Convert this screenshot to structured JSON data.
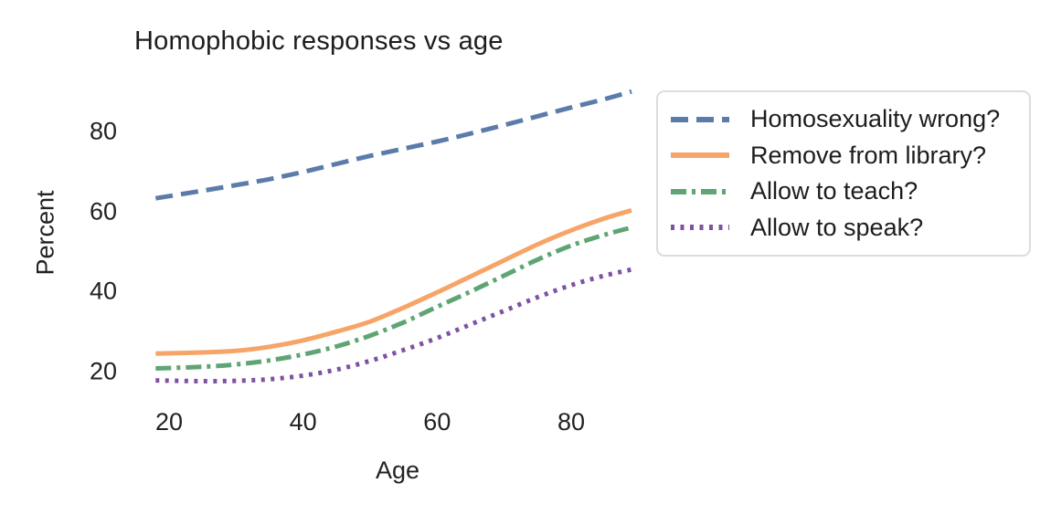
{
  "chart_data": {
    "type": "line",
    "title": "Homophobic responses vs age",
    "xlabel": "Age",
    "ylabel": "Percent",
    "grid": false,
    "legend_position": "right",
    "background": "#ffffff",
    "text_color": "#1d1d1d",
    "legend_border_color": "#dcdcdc",
    "x": [
      18,
      25,
      30,
      35,
      40,
      45,
      50,
      55,
      60,
      65,
      70,
      75,
      80,
      85,
      89
    ],
    "xticks": [
      "20",
      "40",
      "60",
      "80"
    ],
    "yticks_top_to_bottom": [
      "80",
      "60",
      "40",
      "20"
    ],
    "xtick_values": [
      20,
      40,
      60,
      80
    ],
    "ytick_values": [
      80,
      60,
      40,
      20
    ],
    "xlim": [
      18,
      89
    ],
    "ylim": [
      15,
      93
    ],
    "series": [
      {
        "name": "Homosexuality wrong?",
        "color": "#5b7cab",
        "dash": "dashed",
        "values": [
          63.3,
          65.2,
          66.6,
          68.1,
          69.9,
          71.9,
          73.9,
          75.7,
          77.5,
          79.5,
          81.6,
          83.8,
          86.0,
          88.1,
          90.0
        ]
      },
      {
        "name": "Remove from library?",
        "color": "#f7a468",
        "dash": "solid",
        "values": [
          24.5,
          24.8,
          25.2,
          26.2,
          27.8,
          30.0,
          32.5,
          36.0,
          39.8,
          43.8,
          47.8,
          51.8,
          55.3,
          58.3,
          60.3
        ]
      },
      {
        "name": "Allow to teach?",
        "color": "#5fa573",
        "dash": "dashdot",
        "values": [
          20.8,
          21.2,
          21.8,
          22.8,
          24.3,
          26.3,
          29.0,
          32.3,
          36.2,
          40.0,
          44.0,
          48.0,
          51.5,
          54.2,
          56.0
        ]
      },
      {
        "name": "Allow to speak?",
        "color": "#7e51a2",
        "dash": "dotted",
        "values": [
          17.8,
          17.6,
          17.7,
          18.1,
          19.0,
          20.5,
          22.7,
          25.4,
          28.4,
          31.8,
          35.2,
          38.6,
          41.6,
          44.0,
          45.5
        ]
      }
    ]
  }
}
